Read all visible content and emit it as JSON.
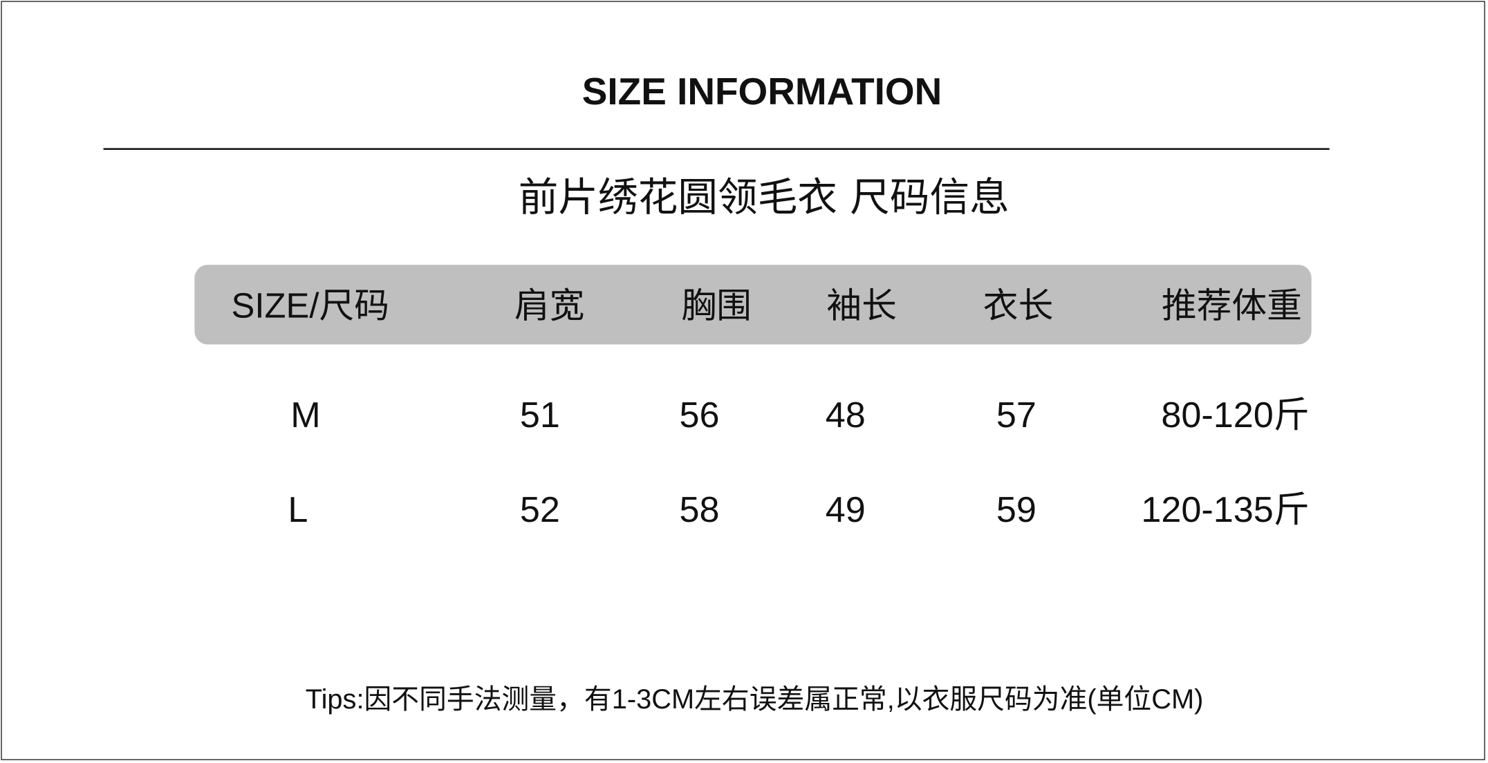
{
  "title": "SIZE  INFORMATION",
  "subtitle": "前片绣花圆领毛衣  尺码信息",
  "table": {
    "header_bg": "#bfbfbf",
    "columns": [
      "SIZE/尺码",
      "肩宽",
      "胸围",
      "袖长",
      "衣长",
      "推荐体重"
    ],
    "rows": [
      [
        "M",
        "51",
        "56",
        "48",
        "57",
        "80-120斤"
      ],
      [
        "L",
        "52",
        "58",
        "49",
        "59",
        "120-135斤"
      ]
    ]
  },
  "tips": "Tips:因不同手法测量，有1-3CM左右误差属正常,以衣服尺码为准(单位CM)"
}
